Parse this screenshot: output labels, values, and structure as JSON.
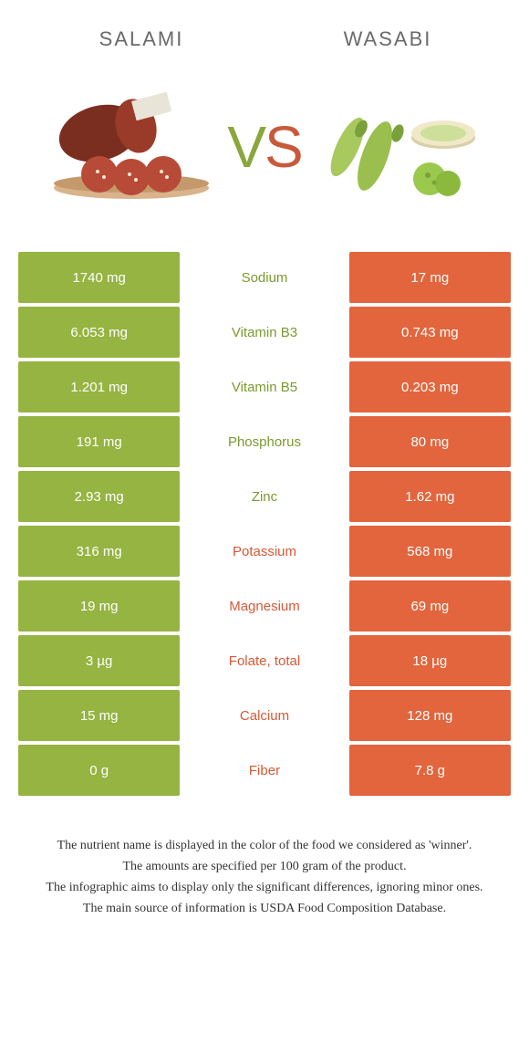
{
  "header": {
    "left": "SALAMI",
    "right": "WASABI"
  },
  "vs": {
    "v": "V",
    "s": "S"
  },
  "colors": {
    "green": "#95b441",
    "orange": "#e2653d",
    "greenText": "#7a9a2e",
    "orangeText": "#d55a36",
    "white": "#ffffff"
  },
  "rows": [
    {
      "left": "1740 mg",
      "name": "Sodium",
      "right": "17 mg",
      "winner": "left"
    },
    {
      "left": "6.053 mg",
      "name": "Vitamin B3",
      "right": "0.743 mg",
      "winner": "left"
    },
    {
      "left": "1.201 mg",
      "name": "Vitamin B5",
      "right": "0.203 mg",
      "winner": "left"
    },
    {
      "left": "191 mg",
      "name": "Phosphorus",
      "right": "80 mg",
      "winner": "left"
    },
    {
      "left": "2.93 mg",
      "name": "Zinc",
      "right": "1.62 mg",
      "winner": "left"
    },
    {
      "left": "316 mg",
      "name": "Potassium",
      "right": "568 mg",
      "winner": "right"
    },
    {
      "left": "19 mg",
      "name": "Magnesium",
      "right": "69 mg",
      "winner": "right"
    },
    {
      "left": "3 µg",
      "name": "Folate, total",
      "right": "18 µg",
      "winner": "right"
    },
    {
      "left": "15 mg",
      "name": "Calcium",
      "right": "128 mg",
      "winner": "right"
    },
    {
      "left": "0 g",
      "name": "Fiber",
      "right": "7.8 g",
      "winner": "right"
    }
  ],
  "footnote": {
    "l1": "The nutrient name is displayed in the color of the food we considered as 'winner'.",
    "l2": "The amounts are specified per 100 gram of the product.",
    "l3": "The infographic aims to display only the significant differences, ignoring minor ones.",
    "l4": "The main source of information is USDA Food Composition Database."
  }
}
